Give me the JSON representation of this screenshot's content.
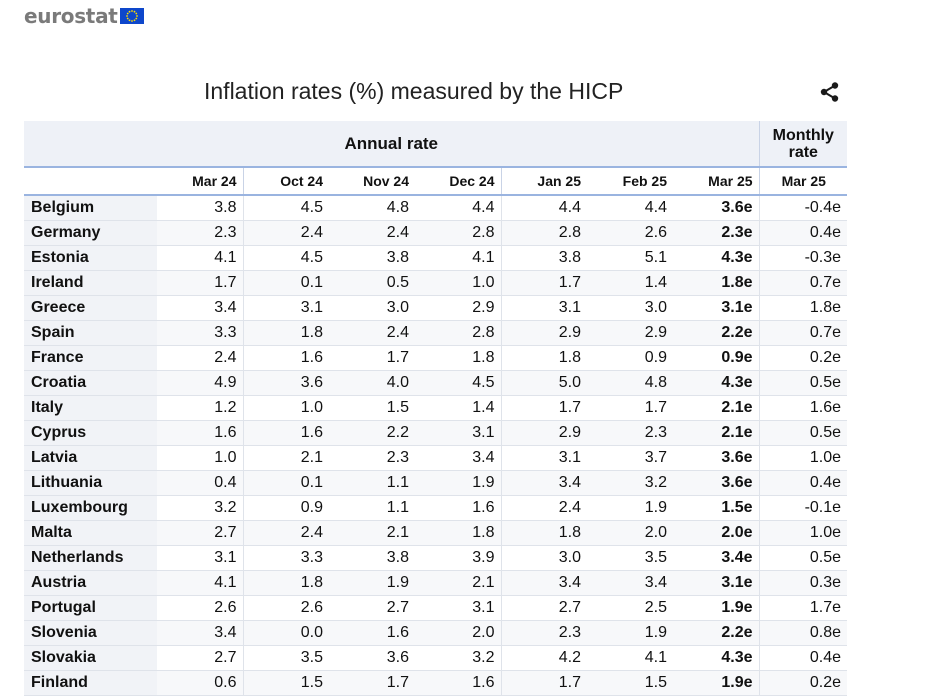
{
  "logo": {
    "text": "eurostat"
  },
  "title": "Inflation rates (%) measured by the HICP",
  "table": {
    "group_annual": "Annual rate",
    "group_monthly": "Monthly rate",
    "columns": [
      "",
      "Mar 24",
      "Oct 24",
      "Nov 24",
      "Dec 24",
      "Jan 25",
      "Feb 25",
      "Mar 25",
      "Mar 25"
    ],
    "rows": [
      [
        "Belgium",
        "3.8",
        "4.5",
        "4.8",
        "4.4",
        "4.4",
        "4.4",
        "3.6e",
        "-0.4e"
      ],
      [
        "Germany",
        "2.3",
        "2.4",
        "2.4",
        "2.8",
        "2.8",
        "2.6",
        "2.3e",
        "0.4e"
      ],
      [
        "Estonia",
        "4.1",
        "4.5",
        "3.8",
        "4.1",
        "3.8",
        "5.1",
        "4.3e",
        "-0.3e"
      ],
      [
        "Ireland",
        "1.7",
        "0.1",
        "0.5",
        "1.0",
        "1.7",
        "1.4",
        "1.8e",
        "0.7e"
      ],
      [
        "Greece",
        "3.4",
        "3.1",
        "3.0",
        "2.9",
        "3.1",
        "3.0",
        "3.1e",
        "1.8e"
      ],
      [
        "Spain",
        "3.3",
        "1.8",
        "2.4",
        "2.8",
        "2.9",
        "2.9",
        "2.2e",
        "0.7e"
      ],
      [
        "France",
        "2.4",
        "1.6",
        "1.7",
        "1.8",
        "1.8",
        "0.9",
        "0.9e",
        "0.2e"
      ],
      [
        "Croatia",
        "4.9",
        "3.6",
        "4.0",
        "4.5",
        "5.0",
        "4.8",
        "4.3e",
        "0.5e"
      ],
      [
        "Italy",
        "1.2",
        "1.0",
        "1.5",
        "1.4",
        "1.7",
        "1.7",
        "2.1e",
        "1.6e"
      ],
      [
        "Cyprus",
        "1.6",
        "1.6",
        "2.2",
        "3.1",
        "2.9",
        "2.3",
        "2.1e",
        "0.5e"
      ],
      [
        "Latvia",
        "1.0",
        "2.1",
        "2.3",
        "3.4",
        "3.1",
        "3.7",
        "3.6e",
        "1.0e"
      ],
      [
        "Lithuania",
        "0.4",
        "0.1",
        "1.1",
        "1.9",
        "3.4",
        "3.2",
        "3.6e",
        "0.4e"
      ],
      [
        "Luxembourg",
        "3.2",
        "0.9",
        "1.1",
        "1.6",
        "2.4",
        "1.9",
        "1.5e",
        "-0.1e"
      ],
      [
        "Malta",
        "2.7",
        "2.4",
        "2.1",
        "1.8",
        "1.8",
        "2.0",
        "2.0e",
        "1.0e"
      ],
      [
        "Netherlands",
        "3.1",
        "3.3",
        "3.8",
        "3.9",
        "3.0",
        "3.5",
        "3.4e",
        "0.5e"
      ],
      [
        "Austria",
        "4.1",
        "1.8",
        "1.9",
        "2.1",
        "3.4",
        "3.4",
        "3.1e",
        "0.3e"
      ],
      [
        "Portugal",
        "2.6",
        "2.6",
        "2.7",
        "3.1",
        "2.7",
        "2.5",
        "1.9e",
        "1.7e"
      ],
      [
        "Slovenia",
        "3.4",
        "0.0",
        "1.6",
        "2.0",
        "2.3",
        "1.9",
        "2.2e",
        "0.8e"
      ],
      [
        "Slovakia",
        "2.7",
        "3.5",
        "3.6",
        "3.2",
        "4.2",
        "4.1",
        "4.3e",
        "0.4e"
      ],
      [
        "Finland",
        "0.6",
        "1.5",
        "1.7",
        "1.6",
        "1.7",
        "1.5",
        "1.9e",
        "0.2e"
      ]
    ]
  },
  "colors": {
    "header_bg": "#eef1f7",
    "accent_line": "#9ab4e0",
    "eu_blue": "#0e47cb",
    "eu_star": "#ffdd00"
  },
  "icons": {
    "share": "share-icon",
    "flag": "eu-flag-icon"
  }
}
